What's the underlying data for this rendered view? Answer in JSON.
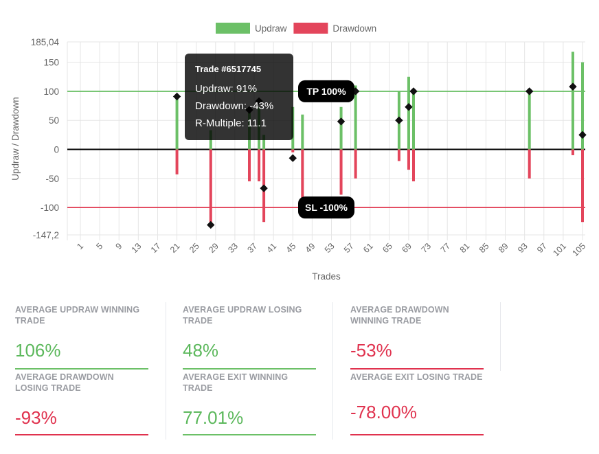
{
  "chart_data": {
    "type": "bar",
    "title": "",
    "xlabel": "Trades",
    "ylabel": "Updraw / Drawdown",
    "ylim": [
      -147.2,
      185.04
    ],
    "y_ticks": [
      "185,04",
      "150",
      "100",
      "50",
      "0",
      "-50",
      "-100",
      "-147,2"
    ],
    "y_tick_values": [
      185.04,
      150,
      100,
      50,
      0,
      -50,
      -100,
      -147.2
    ],
    "x_ticks": [
      "1",
      "5",
      "9",
      "13",
      "17",
      "21",
      "25",
      "29",
      "33",
      "37",
      "41",
      "45",
      "49",
      "53",
      "57",
      "61",
      "65",
      "69",
      "73",
      "77",
      "81",
      "85",
      "89",
      "93",
      "97",
      "101",
      "105"
    ],
    "x_range": [
      1,
      105
    ],
    "grid": true,
    "legend_position": "top",
    "legend": [
      {
        "label": "Updraw",
        "color": "#6cc067"
      },
      {
        "label": "Drawdown",
        "color": "#e3455b"
      }
    ],
    "series": [
      {
        "name": "Updraw",
        "color": "#6cc067",
        "points": [
          [
            21,
            91
          ],
          [
            28,
            33
          ],
          [
            36,
            68
          ],
          [
            38,
            73
          ],
          [
            39,
            25
          ],
          [
            45,
            73
          ],
          [
            47,
            60
          ],
          [
            55,
            73
          ],
          [
            58,
            110
          ],
          [
            67,
            100
          ],
          [
            69,
            125
          ],
          [
            70,
            100
          ],
          [
            94,
            100
          ],
          [
            103,
            168
          ],
          [
            105,
            150
          ]
        ]
      },
      {
        "name": "Drawdown",
        "color": "#e3455b",
        "points": [
          [
            21,
            -43
          ],
          [
            28,
            -130
          ],
          [
            36,
            -55
          ],
          [
            38,
            -55
          ],
          [
            39,
            -125
          ],
          [
            45,
            -5
          ],
          [
            47,
            -100
          ],
          [
            55,
            -78
          ],
          [
            58,
            -50
          ],
          [
            67,
            -20
          ],
          [
            69,
            -35
          ],
          [
            70,
            -55
          ],
          [
            94,
            -50
          ],
          [
            103,
            -10
          ],
          [
            105,
            -125
          ]
        ]
      },
      {
        "name": "Exit",
        "type": "scatter",
        "marker": "diamond",
        "points": [
          [
            21,
            91
          ],
          [
            28,
            -130
          ],
          [
            36,
            68
          ],
          [
            38,
            83
          ],
          [
            39,
            -67
          ],
          [
            45,
            -15
          ],
          [
            47,
            -100
          ],
          [
            55,
            48
          ],
          [
            58,
            100
          ],
          [
            67,
            50
          ],
          [
            69,
            73
          ],
          [
            70,
            100
          ],
          [
            94,
            100
          ],
          [
            103,
            108
          ],
          [
            105,
            25
          ]
        ]
      }
    ],
    "reference_lines": [
      {
        "label": "TP 100%",
        "value": 100,
        "color": "#6cc067"
      },
      {
        "label": "SL -100%",
        "value": -100,
        "color": "#e3455b"
      },
      {
        "label": "",
        "value": 0,
        "color": "#000000"
      }
    ],
    "tooltip": {
      "title": "Trade #6517745",
      "lines": [
        "Updraw: 91%",
        "Drawdown: -43%",
        "R-Multiple: 11.1"
      ],
      "trade_index": 21
    }
  },
  "stats": [
    {
      "label": "AVERAGE UPDRAW WINNING TRADE",
      "value": "106%",
      "tone": "green"
    },
    {
      "label": "AVERAGE UPDRAW LOSING TRADE",
      "value": "48%",
      "tone": "green"
    },
    {
      "label": "AVERAGE DRAWDOWN WINNING TRADE",
      "value": "-53%",
      "tone": "red"
    },
    {
      "label": "AVERAGE DRAWDOWN LOSING TRADE",
      "value": "-93%",
      "tone": "red"
    },
    {
      "label": "AVERAGE EXIT WINNING TRADE",
      "value": "77.01%",
      "tone": "green"
    },
    {
      "label": "AVERAGE EXIT LOSING TRADE",
      "value": "-78.00%",
      "tone": "red"
    }
  ]
}
